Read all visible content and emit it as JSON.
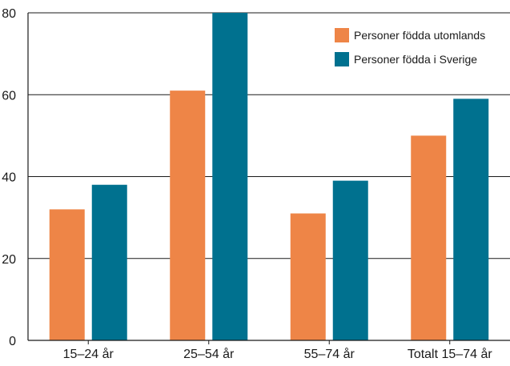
{
  "chart_data": {
    "type": "bar",
    "title": "",
    "xlabel": "",
    "ylabel": "",
    "categories": [
      "15–24 år",
      "25–54 år",
      "55–74 år",
      "Totalt 15–74 år"
    ],
    "series": [
      {
        "name": "Personer födda utomlands",
        "color": "#ee8547",
        "values": [
          32,
          61,
          31,
          50
        ]
      },
      {
        "name": "Personer födda i Sverige",
        "color": "#00718f",
        "values": [
          38,
          80,
          39,
          59
        ]
      }
    ],
    "ylim": [
      0,
      80
    ],
    "yticks": [
      0,
      20,
      40,
      60,
      80
    ],
    "grid": true,
    "legend_position": "top-right"
  }
}
